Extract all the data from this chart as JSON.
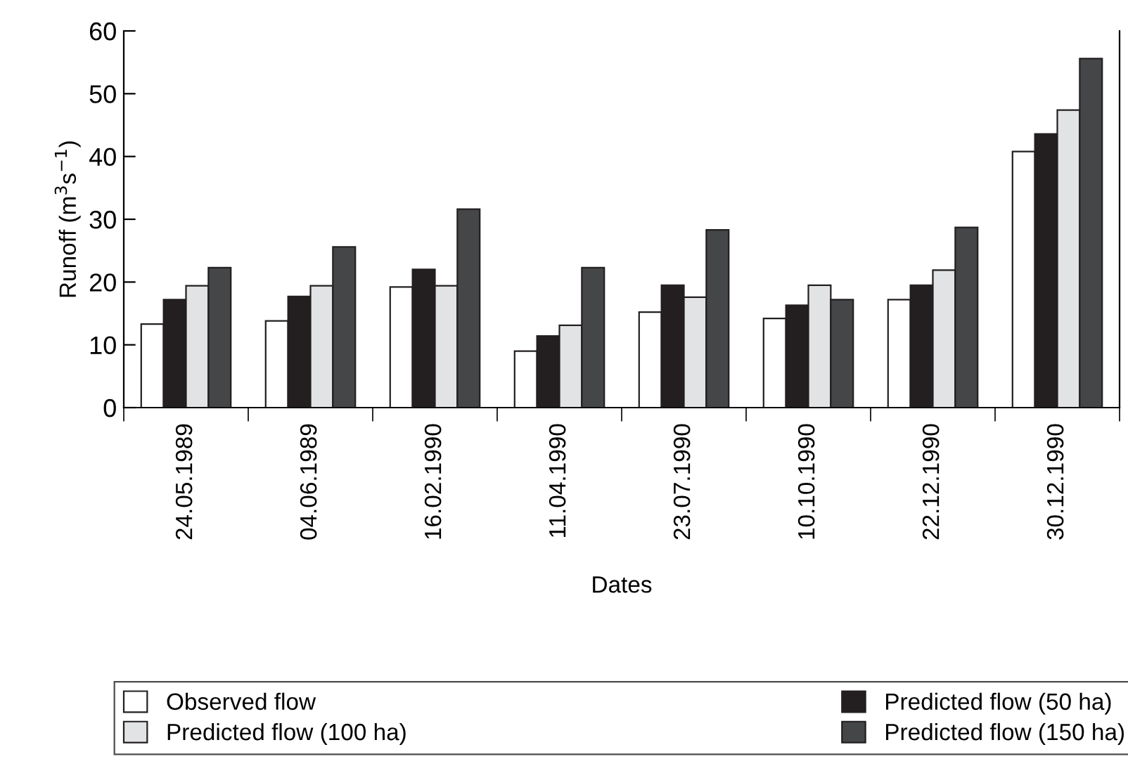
{
  "chart_data": {
    "type": "bar",
    "xlabel": "Dates",
    "ylabel": "Runoff (m$^{3}$s$^{−1}$)",
    "categories": [
      "24.05.1989",
      "04.06.1989",
      "16.02.1990",
      "11.04.1990",
      "23.07.1990",
      "10.10.1990",
      "22.12.1990",
      "30.12.1990"
    ],
    "series": [
      {
        "name": "Observed flow",
        "color": "#ffffff",
        "values": [
          13.3,
          13.8,
          19.2,
          9.0,
          15.2,
          14.2,
          17.2,
          40.8
        ]
      },
      {
        "name": "Predicted flow (50 ha)",
        "color": "#231f20",
        "values": [
          17.2,
          17.7,
          22.0,
          11.4,
          19.5,
          16.3,
          19.5,
          43.6
        ]
      },
      {
        "name": "Predicted flow (100 ha)",
        "color": "#e2e3e5",
        "values": [
          19.4,
          19.4,
          19.4,
          13.1,
          17.6,
          19.5,
          21.9,
          47.4
        ]
      },
      {
        "name": "Predicted flow (150 ha)",
        "color": "#444648",
        "values": [
          22.3,
          25.6,
          31.6,
          22.3,
          28.3,
          17.2,
          28.7,
          55.6
        ]
      }
    ],
    "ylim": [
      0,
      60
    ],
    "yticks": [
      0,
      10,
      20,
      30,
      40,
      50,
      60
    ],
    "grid": false,
    "legend": "bottom"
  }
}
